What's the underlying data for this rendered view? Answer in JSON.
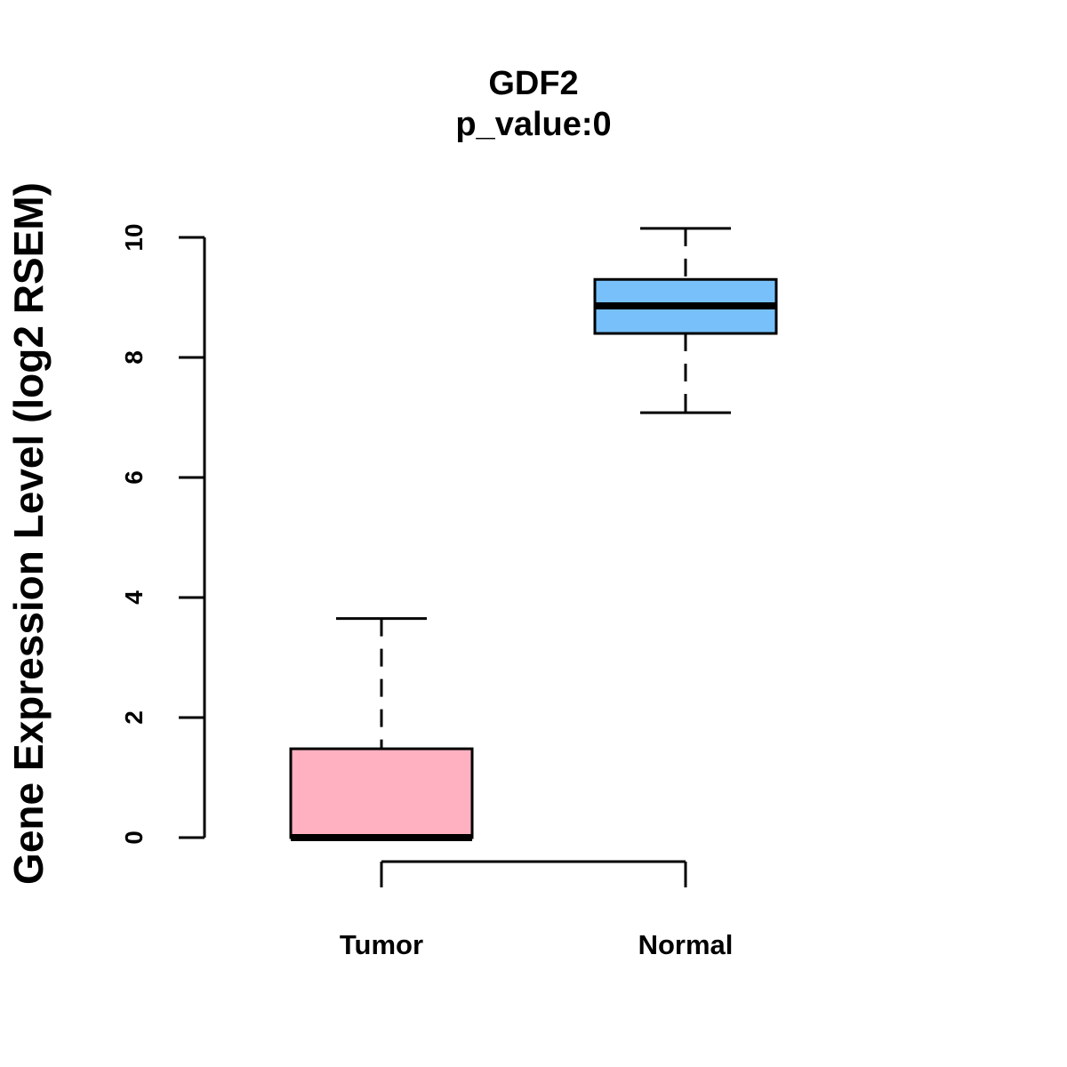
{
  "chart_data": {
    "type": "boxplot",
    "title": "GDF2",
    "subtitle": "p_value:0",
    "xlabel": "",
    "ylabel": "Gene Expression Level (log2 RSEM)",
    "ylim": [
      0,
      10
    ],
    "yticks": [
      0,
      2,
      4,
      6,
      8,
      10
    ],
    "grid": false,
    "categories": [
      "Tumor",
      "Normal"
    ],
    "boxes": [
      {
        "name": "Tumor",
        "whisker_low": 0,
        "q1": 0,
        "median": 0,
        "q3": 1.48,
        "whisker_high": 3.65,
        "color": "#FFB1C1"
      },
      {
        "name": "Normal",
        "whisker_low": 7.08,
        "q1": 8.4,
        "median": 8.86,
        "q3": 9.3,
        "whisker_high": 10.15,
        "color": "#77C0FA"
      }
    ]
  }
}
